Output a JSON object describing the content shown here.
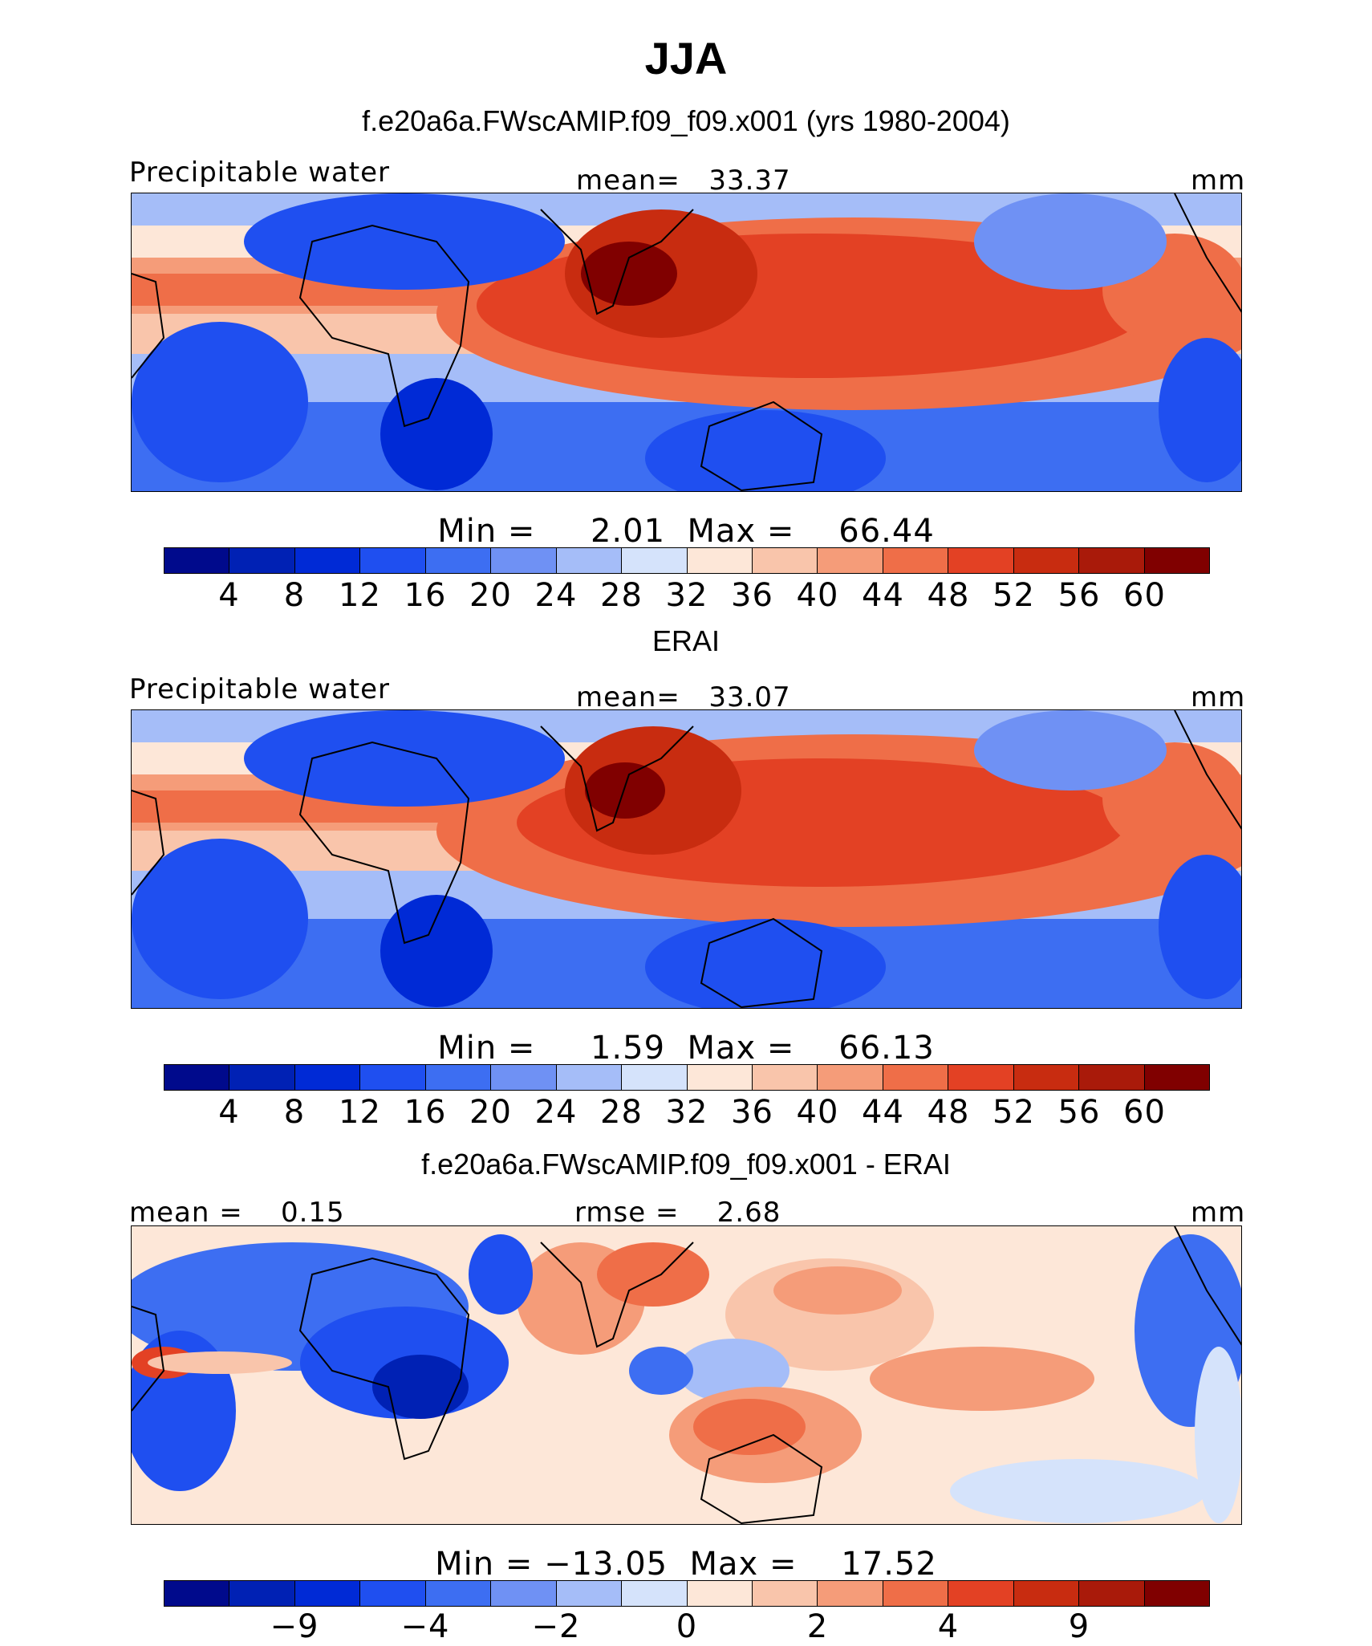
{
  "title": "JJA",
  "palette_abs": [
    "#000a8c",
    "#0021b4",
    "#002ad6",
    "#1f4ff0",
    "#3d6ef2",
    "#6f91f4",
    "#a5bdf8",
    "#d5e3fb",
    "#fde7d8",
    "#f9c5ab",
    "#f59c79",
    "#ef6e48",
    "#e34124",
    "#c82c10",
    "#a91a0a",
    "#800000"
  ],
  "palette_diff": [
    "#000a8c",
    "#0021b4",
    "#002ad6",
    "#1f4ff0",
    "#3d6ef2",
    "#6f91f4",
    "#a5bdf8",
    "#d5e3fb",
    "#fde7d8",
    "#f9c5ab",
    "#f59c79",
    "#ef6e48",
    "#e34124",
    "#c82c10",
    "#a91a0a",
    "#800000"
  ],
  "panels": [
    {
      "title": "f.e20a6a.FWscAMIP.f09_f09.x001 (yrs 1980-2004)",
      "left_label": "Precipitable water",
      "center_label": "mean=   33.37",
      "units": "mm",
      "minmax": "Min =     2.01  Max =    66.44",
      "ticks": [
        "4",
        "8",
        "12",
        "16",
        "20",
        "24",
        "28",
        "32",
        "36",
        "40",
        "44",
        "48",
        "52",
        "56",
        "60"
      ],
      "tick_positions": [
        1,
        2,
        3,
        4,
        5,
        6,
        7,
        8,
        9,
        10,
        11,
        12,
        13,
        14,
        15
      ]
    },
    {
      "title": "ERAI",
      "left_label": "Precipitable water",
      "center_label": "mean=   33.07",
      "units": "mm",
      "minmax": "Min =     1.59  Max =    66.13",
      "ticks": [
        "4",
        "8",
        "12",
        "16",
        "20",
        "24",
        "28",
        "32",
        "36",
        "40",
        "44",
        "48",
        "52",
        "56",
        "60"
      ],
      "tick_positions": [
        1,
        2,
        3,
        4,
        5,
        6,
        7,
        8,
        9,
        10,
        11,
        12,
        13,
        14,
        15
      ]
    },
    {
      "title": "f.e20a6a.FWscAMIP.f09_f09.x001 - ERAI",
      "left_label": "mean =    0.15",
      "center_label": "rmse =    2.68",
      "units": "mm",
      "minmax": "Min = −13.05  Max =    17.52",
      "ticks": [
        "−9",
        "−4",
        "−2",
        "0",
        "2",
        "4",
        "9"
      ],
      "tick_positions": [
        2,
        4,
        6,
        8,
        10,
        12,
        14
      ]
    }
  ]
}
